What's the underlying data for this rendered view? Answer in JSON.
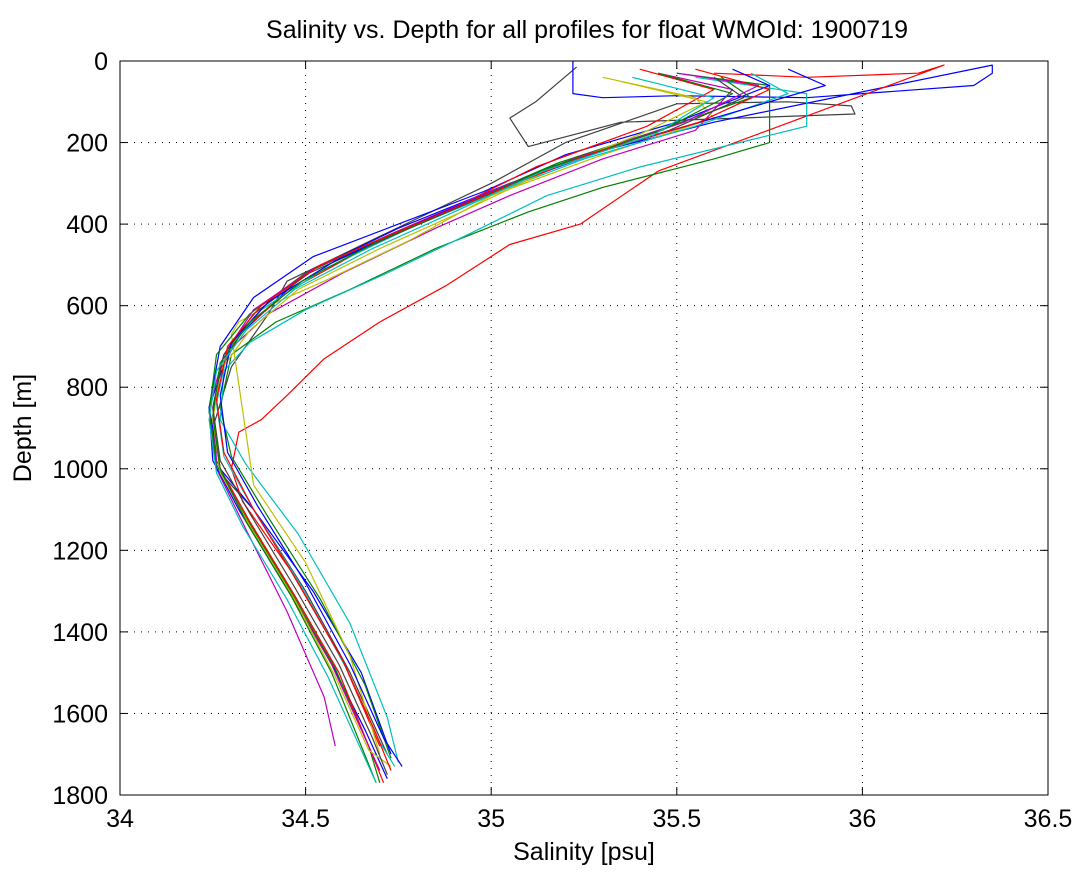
{
  "chart_data": {
    "type": "line",
    "title": "Salinity vs. Depth for all profiles for float WMOId: 1900719",
    "xlabel": "Salinity [psu]",
    "ylabel": "Depth [m]",
    "xlim": [
      34,
      36.5
    ],
    "ylim": [
      0,
      1800
    ],
    "y_reversed": true,
    "grid": true,
    "grid_style": "dotted",
    "legend": "none",
    "x_ticks": [
      "34",
      "34.5",
      "35",
      "35.5",
      "36",
      "36.5"
    ],
    "y_ticks": [
      "0",
      "200",
      "400",
      "600",
      "800",
      "1000",
      "1200",
      "1400",
      "1600",
      "1800"
    ],
    "series_colors": [
      "#0000ff",
      "#008000",
      "#ff0000",
      "#00bfbf",
      "#bf00bf",
      "#bfbf00",
      "#404040"
    ],
    "series": [
      {
        "color": "#404040",
        "x": [
          35.23,
          35.12,
          35.05,
          35.1,
          35.35,
          35.98,
          35.97,
          35.8,
          35.5,
          35.2,
          35.0,
          34.7,
          34.45,
          34.4,
          34.3,
          34.25,
          34.26,
          34.36,
          34.5,
          34.62,
          34.72
        ],
        "y": [
          15,
          100,
          140,
          210,
          150,
          130,
          110,
          100,
          105,
          200,
          300,
          430,
          540,
          620,
          750,
          900,
          1000,
          1100,
          1300,
          1500,
          1700
        ]
      },
      {
        "color": "#0000ff",
        "x": [
          35.22,
          35.22,
          35.3,
          35.5,
          35.85,
          36.3,
          36.35,
          36.35,
          35.6,
          35.3,
          35.05,
          34.75,
          34.5,
          34.3,
          34.24,
          34.27,
          34.36,
          34.52,
          34.65,
          34.73
        ],
        "y": [
          0,
          80,
          90,
          85,
          90,
          60,
          30,
          10,
          150,
          220,
          300,
          410,
          520,
          690,
          850,
          1000,
          1100,
          1300,
          1500,
          1700
        ]
      },
      {
        "color": "#ff0000",
        "x": [
          35.6,
          35.85,
          36.15,
          36.22,
          35.45,
          35.24,
          35.05,
          34.88,
          34.7,
          34.55,
          34.45,
          34.38,
          34.32,
          34.3,
          34.33,
          34.46,
          34.6,
          34.7
        ],
        "y": [
          30,
          40,
          30,
          10,
          270,
          400,
          450,
          550,
          640,
          730,
          820,
          880,
          910,
          1000,
          1080,
          1250,
          1470,
          1680
        ]
      },
      {
        "color": "#008000",
        "x": [
          35.5,
          35.75,
          35.75,
          35.6,
          35.3,
          35.1,
          34.85,
          34.62,
          34.42,
          34.3,
          34.27,
          34.3,
          34.4,
          34.54,
          34.66,
          34.73
        ],
        "y": [
          30,
          60,
          200,
          240,
          310,
          370,
          460,
          560,
          640,
          720,
          850,
          970,
          1120,
          1320,
          1530,
          1710
        ]
      },
      {
        "color": "#00bfbf",
        "x": [
          35.55,
          35.85,
          35.85,
          35.4,
          35.15,
          34.95,
          34.72,
          34.5,
          34.35,
          34.28,
          34.27,
          34.34,
          34.48,
          34.62,
          34.72,
          34.75
        ],
        "y": [
          40,
          80,
          160,
          260,
          330,
          420,
          520,
          610,
          690,
          760,
          880,
          990,
          1160,
          1380,
          1610,
          1720
        ]
      },
      {
        "color": "#bf00bf",
        "x": [
          35.45,
          35.65,
          35.55,
          35.3,
          35.05,
          34.85,
          34.6,
          34.4,
          34.28,
          34.24,
          34.26,
          34.34,
          34.45,
          34.55,
          34.58
        ],
        "y": [
          30,
          70,
          170,
          240,
          330,
          410,
          520,
          620,
          720,
          850,
          1000,
          1150,
          1350,
          1560,
          1680
        ]
      },
      {
        "color": "#bfbf00",
        "x": [
          35.3,
          35.55,
          35.6,
          35.3,
          35.0,
          34.78,
          34.55,
          34.4,
          34.32,
          34.3,
          34.36,
          34.5,
          34.62,
          34.7
        ],
        "y": [
          40,
          90,
          140,
          230,
          330,
          440,
          540,
          600,
          640,
          670,
          1040,
          1230,
          1460,
          1700
        ]
      },
      {
        "color": "#0000ff",
        "x": [
          35.65,
          35.75,
          35.5,
          35.2,
          34.98,
          34.75,
          34.52,
          34.36,
          34.27,
          34.24,
          34.25,
          34.32,
          34.44,
          34.56,
          34.66,
          34.72
        ],
        "y": [
          20,
          60,
          150,
          230,
          320,
          400,
          480,
          580,
          700,
          850,
          980,
          1100,
          1280,
          1460,
          1640,
          1760
        ]
      },
      {
        "color": "#008000",
        "x": [
          35.62,
          35.7,
          35.45,
          35.18,
          34.95,
          34.72,
          34.5,
          34.35,
          34.26,
          34.24,
          34.26,
          34.34,
          34.46,
          34.58,
          34.67,
          34.7
        ],
        "y": [
          40,
          90,
          170,
          250,
          340,
          430,
          520,
          620,
          720,
          860,
          990,
          1120,
          1300,
          1490,
          1680,
          1770
        ]
      },
      {
        "color": "#ff0000",
        "x": [
          35.4,
          35.6,
          35.42,
          35.12,
          34.9,
          34.66,
          34.46,
          34.33,
          34.27,
          34.25,
          34.27,
          34.35,
          34.47,
          34.59,
          34.67,
          34.71
        ],
        "y": [
          20,
          70,
          160,
          260,
          360,
          460,
          560,
          660,
          760,
          880,
          1000,
          1130,
          1310,
          1500,
          1680,
          1770
        ]
      },
      {
        "color": "#00bfbf",
        "x": [
          35.7,
          35.8,
          35.55,
          35.25,
          35.02,
          34.78,
          34.55,
          34.38,
          34.29,
          34.26,
          34.28,
          34.36,
          34.49,
          34.61,
          34.7,
          34.74
        ],
        "y": [
          30,
          80,
          160,
          240,
          320,
          410,
          510,
          610,
          710,
          840,
          970,
          1100,
          1290,
          1490,
          1670,
          1730
        ]
      },
      {
        "color": "#bf00bf",
        "x": [
          35.5,
          35.72,
          35.52,
          35.22,
          34.97,
          34.74,
          34.52,
          34.36,
          34.28,
          34.25,
          34.26,
          34.33,
          34.45,
          34.57,
          34.66,
          34.7
        ],
        "y": [
          30,
          60,
          150,
          240,
          330,
          420,
          510,
          610,
          720,
          850,
          980,
          1110,
          1290,
          1480,
          1660,
          1740
        ]
      },
      {
        "color": "#bfbf00",
        "x": [
          35.35,
          35.58,
          35.4,
          35.15,
          34.92,
          34.7,
          34.48,
          34.35,
          34.27,
          34.25,
          34.27,
          34.35,
          34.47,
          34.58,
          34.67,
          34.73
        ],
        "y": [
          50,
          100,
          180,
          270,
          370,
          460,
          560,
          660,
          760,
          880,
          1010,
          1140,
          1320,
          1510,
          1690,
          1730
        ]
      },
      {
        "color": "#404040",
        "x": [
          35.6,
          35.68,
          35.48,
          35.2,
          34.96,
          34.73,
          34.51,
          34.36,
          34.28,
          34.25,
          34.27,
          34.35,
          34.47,
          34.59,
          34.68,
          34.72
        ],
        "y": [
          40,
          90,
          170,
          250,
          340,
          430,
          520,
          620,
          720,
          850,
          980,
          1110,
          1290,
          1480,
          1660,
          1750
        ]
      },
      {
        "color": "#0000ff",
        "x": [
          35.8,
          35.9,
          35.6,
          35.3,
          35.06,
          34.82,
          34.58,
          34.4,
          34.3,
          34.27,
          34.29,
          34.37,
          34.5,
          34.62,
          34.71,
          34.76
        ],
        "y": [
          20,
          60,
          140,
          220,
          300,
          390,
          490,
          590,
          690,
          820,
          960,
          1090,
          1280,
          1480,
          1660,
          1730
        ]
      },
      {
        "color": "#008000",
        "x": [
          35.45,
          35.65,
          35.46,
          35.16,
          34.93,
          34.7,
          34.49,
          34.35,
          34.27,
          34.25,
          34.27,
          34.34,
          34.46,
          34.57,
          34.65,
          34.69
        ],
        "y": [
          30,
          80,
          170,
          260,
          350,
          440,
          540,
          640,
          740,
          870,
          1000,
          1130,
          1310,
          1500,
          1680,
          1770
        ]
      },
      {
        "color": "#ff0000",
        "x": [
          35.55,
          35.75,
          35.56,
          35.26,
          35.01,
          34.77,
          34.54,
          34.38,
          34.29,
          34.26,
          34.28,
          34.36,
          34.48,
          34.6,
          34.69,
          34.73
        ],
        "y": [
          20,
          70,
          150,
          230,
          320,
          410,
          500,
          600,
          700,
          830,
          960,
          1100,
          1280,
          1470,
          1650,
          1740
        ]
      },
      {
        "color": "#00bfbf",
        "x": [
          35.38,
          35.6,
          35.44,
          35.14,
          34.9,
          34.68,
          34.47,
          34.34,
          34.26,
          34.24,
          34.26,
          34.33,
          34.45,
          34.56,
          34.65,
          34.69
        ],
        "y": [
          40,
          90,
          180,
          270,
          370,
          460,
          560,
          660,
          760,
          880,
          1010,
          1140,
          1320,
          1510,
          1690,
          1770
        ]
      }
    ]
  }
}
